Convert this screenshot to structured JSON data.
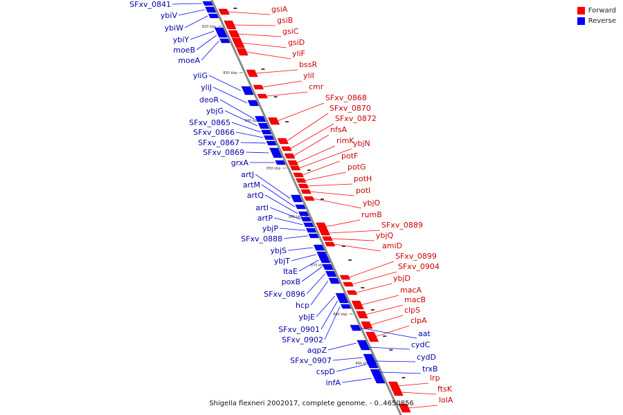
{
  "legend": {
    "forward_label": "Forward",
    "reverse_label": "Reverse",
    "forward_color": "#ff0000",
    "reverse_color": "#0000ff"
  },
  "caption": "Shigella flexneri 2002017, complete genome. - 0..4650856",
  "ticks": [
    "820 kbp",
    "830 kbp",
    "840 kbp",
    "850 kbp",
    "860 kbp",
    "870 kbp",
    "880 kbp",
    "890 kbp"
  ],
  "forward_genes": [
    "gsiA",
    "gsiB",
    "gsiC",
    "gsiD",
    "yliF",
    "bssR",
    "yliI",
    "cmr",
    "SFxv_0868",
    "SFxv_0870",
    "SFxv_0872",
    "nfsA",
    "rimK",
    "ybjN",
    "potF",
    "potG",
    "potH",
    "potI",
    "ybjO",
    "rumB",
    "SFxv_0889",
    "ybjQ",
    "amiD",
    "SFxv_0899",
    "SFxv_0904",
    "ybjD",
    "macA",
    "macB",
    "clpS",
    "clpA",
    "lrp",
    "ftsK",
    "lolA"
  ],
  "reverse_genes_left": [
    "SFxv_0841",
    "ybiV",
    "ybiW",
    "ybiY",
    "moeB",
    "moeA",
    "yliG",
    "yliJ",
    "deoR",
    "ybjG",
    "SFxv_0865",
    "SFxv_0866",
    "SFxv_0867",
    "SFxv_0869",
    "grxA",
    "artJ",
    "artM",
    "artQ",
    "artI",
    "artP",
    "ybjP",
    "SFxv_0888",
    "ybjS",
    "ybjT",
    "ltaE",
    "poxB",
    "SFxv_0896",
    "hcp",
    "ybjE",
    "SFxv_0901",
    "SFxv_0902",
    "aqpZ",
    "SFxv_0907",
    "cspD",
    "infA"
  ],
  "reverse_genes_right": [
    "aat",
    "cydC",
    "cydD",
    "trxB"
  ]
}
